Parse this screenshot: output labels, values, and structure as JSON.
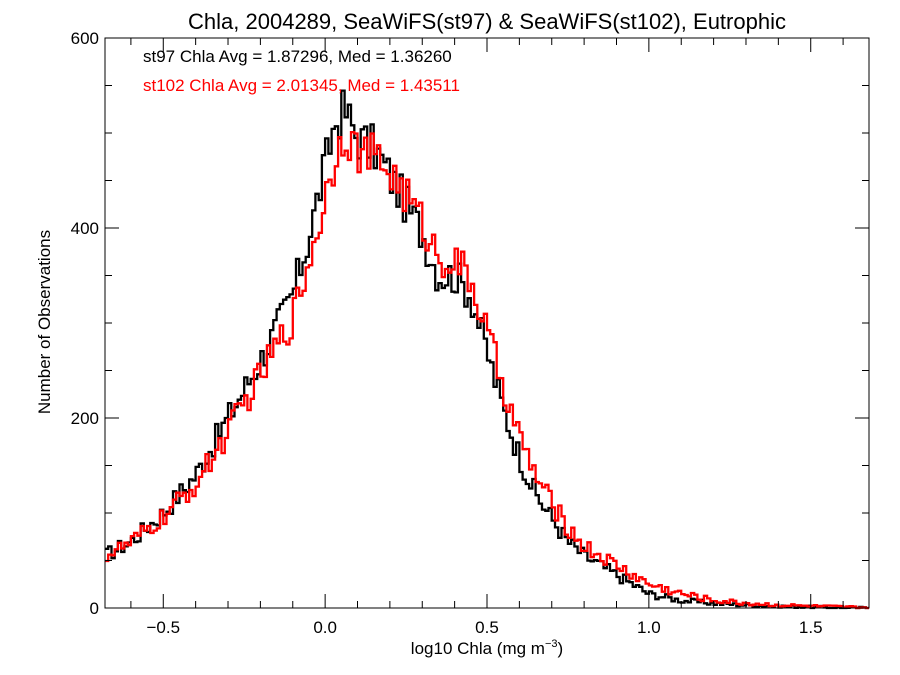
{
  "chart_data": {
    "type": "line",
    "title": "Chla, 2004289, SeaWiFS(st97) & SeaWiFS(st102), Eutrophic",
    "xlabel_main": "log10 Chla (mg m",
    "xlabel_sup": "−3",
    "xlabel_tail": ")",
    "ylabel": "Number of Observations",
    "xlim": [
      -0.68,
      1.68
    ],
    "ylim": [
      0,
      600
    ],
    "x_ticks": [
      {
        "value": -0.5,
        "label": "−0.5"
      },
      {
        "value": 0.0,
        "label": "0.0"
      },
      {
        "value": 0.5,
        "label": "0.5"
      },
      {
        "value": 1.0,
        "label": "1.0"
      },
      {
        "value": 1.5,
        "label": "1.5"
      }
    ],
    "y_ticks": [
      {
        "value": 0,
        "label": "0"
      },
      {
        "value": 200,
        "label": "200"
      },
      {
        "value": 400,
        "label": "400"
      },
      {
        "value": 600,
        "label": "600"
      }
    ],
    "grid": false,
    "histogram_step": true,
    "bin_width": 0.01,
    "x": [
      -0.68,
      -0.6,
      -0.5,
      -0.4,
      -0.3,
      -0.2,
      -0.1,
      -0.05,
      0.0,
      0.03,
      0.06,
      0.1,
      0.15,
      0.2,
      0.25,
      0.3,
      0.35,
      0.4,
      0.45,
      0.5,
      0.55,
      0.6,
      0.65,
      0.7,
      0.75,
      0.8,
      0.85,
      0.9,
      0.95,
      1.0,
      1.1,
      1.2,
      1.3,
      1.4,
      1.5,
      1.6,
      1.68
    ],
    "series": [
      {
        "name": "st97 Chla Avg = 1.87296, Med = 1.36260",
        "color": "#000000",
        "values": [
          55,
          70,
          100,
          140,
          200,
          260,
          330,
          390,
          465,
          510,
          525,
          495,
          485,
          455,
          425,
          395,
          350,
          350,
          330,
          270,
          210,
          160,
          120,
          95,
          70,
          55,
          45,
          35,
          25,
          15,
          8,
          5,
          3,
          2,
          1,
          0,
          0
        ]
      },
      {
        "name": "st102 Chla Avg = 2.01345, Med = 1.43511",
        "color": "#ff0000",
        "values": [
          55,
          68,
          95,
          130,
          185,
          245,
          305,
          365,
          430,
          475,
          505,
          480,
          475,
          460,
          435,
          405,
          370,
          365,
          345,
          290,
          235,
          180,
          140,
          110,
          85,
          65,
          55,
          45,
          35,
          25,
          15,
          8,
          5,
          3,
          2,
          1,
          0
        ]
      }
    ]
  }
}
